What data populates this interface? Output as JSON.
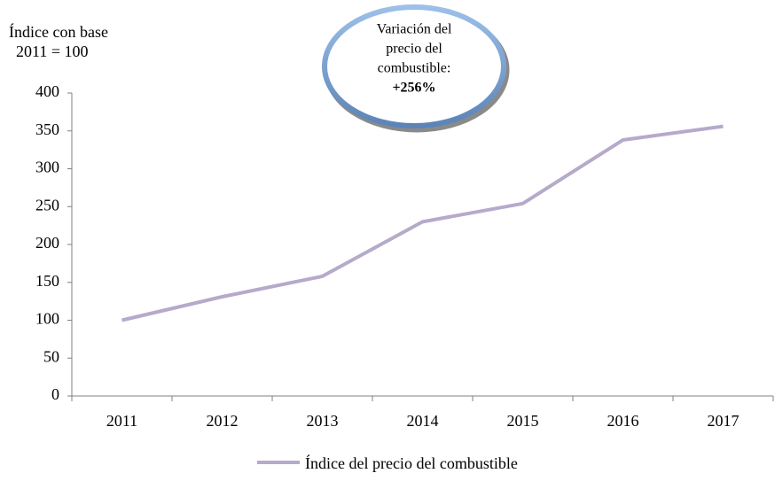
{
  "chart_data": {
    "type": "line",
    "ylabel": [
      "Índice con base",
      "2011 = 100"
    ],
    "categories": [
      "2011",
      "2012",
      "2013",
      "2014",
      "2015",
      "2016",
      "2017"
    ],
    "series": [
      {
        "name": "Índice del precio del combustible",
        "color": "#b6aacb",
        "values": [
          100,
          131,
          158,
          230,
          254,
          338,
          356
        ]
      }
    ],
    "ylim": [
      0,
      400
    ],
    "yticks": [
      0,
      50,
      100,
      150,
      200,
      250,
      300,
      350,
      400
    ],
    "legend": "bottom",
    "annotation": {
      "lines": [
        "Variación del",
        "precio del",
        "combustible:"
      ],
      "emphasis": "+256%"
    }
  }
}
